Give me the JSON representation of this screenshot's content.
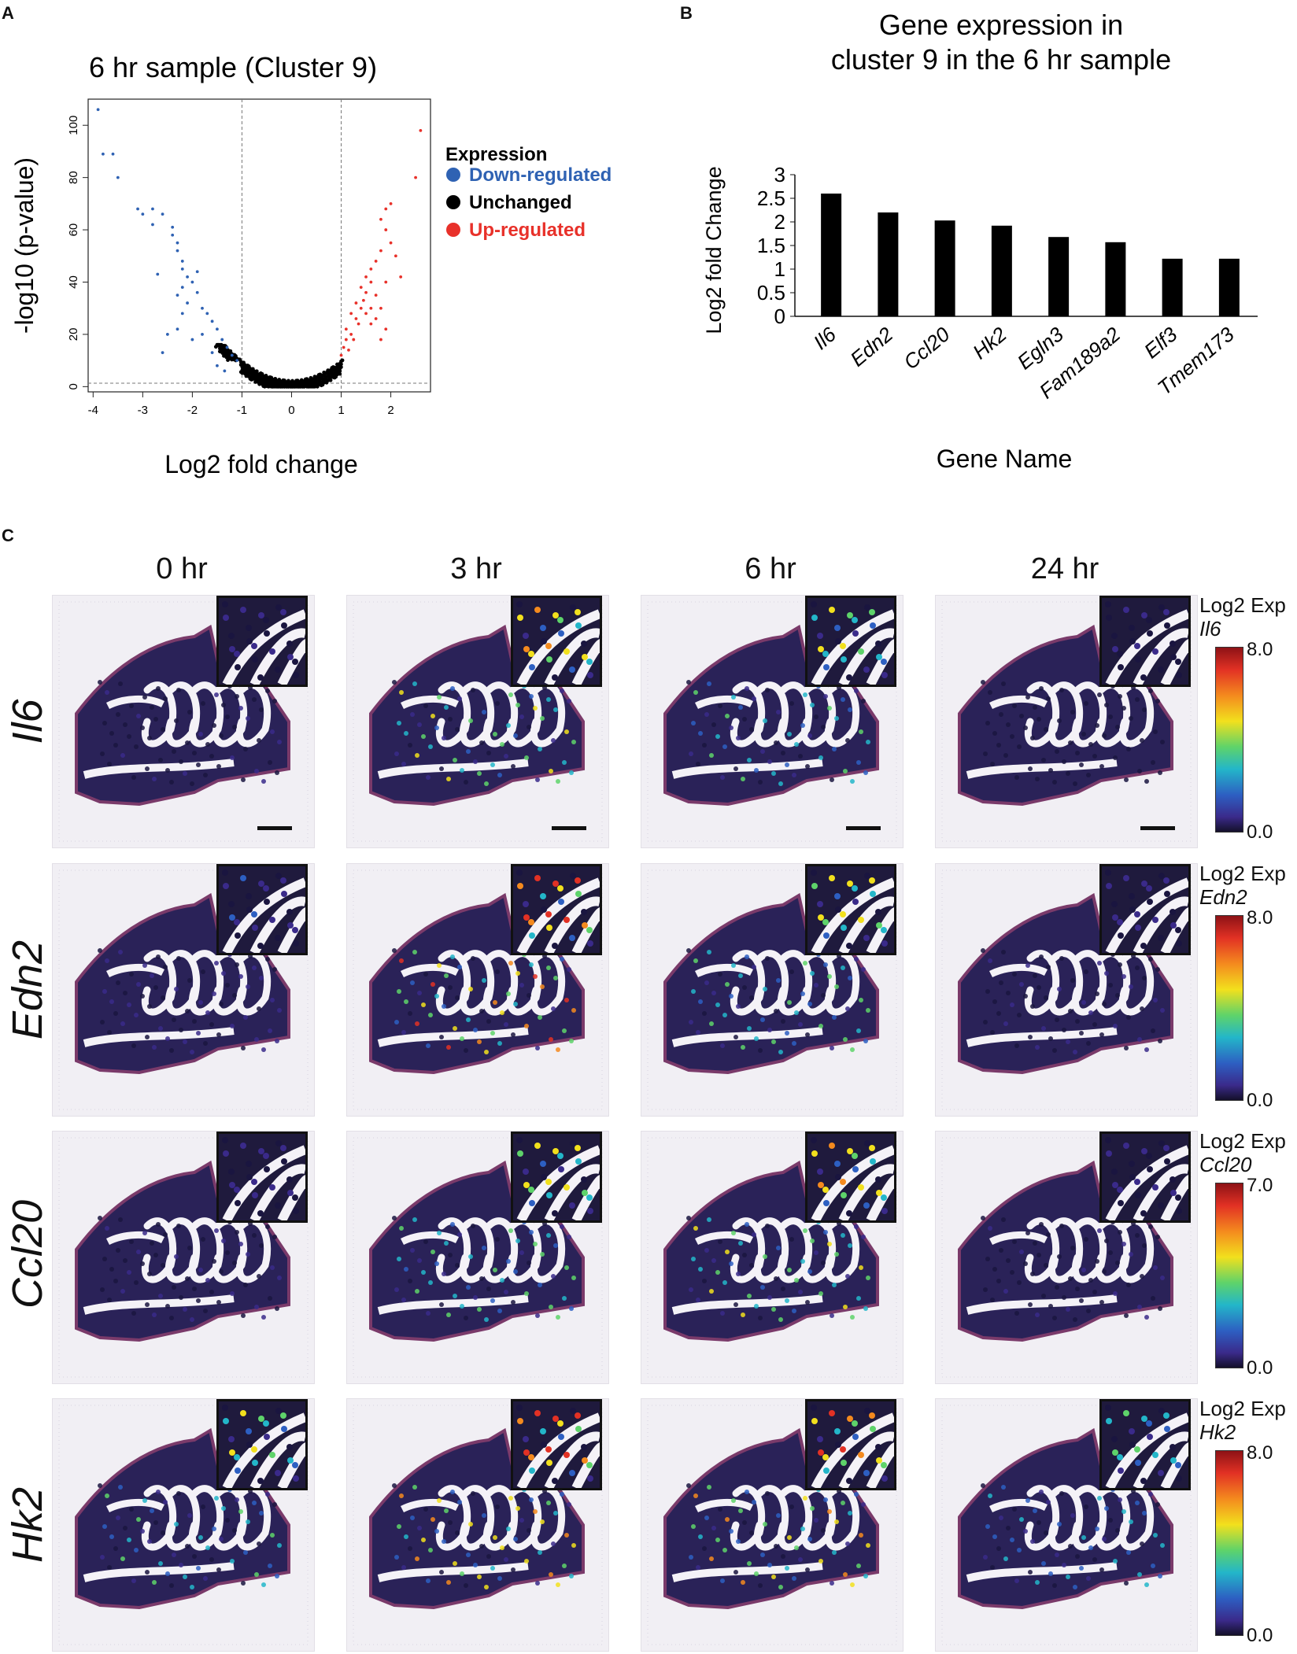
{
  "panels": {
    "a": "A",
    "b": "B",
    "c": "C"
  },
  "chart_data": [
    {
      "type": "scatter",
      "title": "6 hr sample (Cluster 9)",
      "xlabel": "Log2 fold change",
      "ylabel": "-log10 (p-value)",
      "xlim": [
        -4.1,
        2.8
      ],
      "ylim": [
        -2,
        110
      ],
      "xticks": [
        "-4",
        "-3",
        "-2",
        "-1",
        "0",
        "1",
        "2"
      ],
      "yticks": [
        "0",
        "20",
        "40",
        "60",
        "80",
        "100"
      ],
      "thresholds": {
        "x": [
          -1,
          1
        ],
        "y": 1.3
      },
      "legend": {
        "title": "Expression",
        "position": "right",
        "entries": [
          {
            "label": "Down-regulated",
            "color": "#2f62b3"
          },
          {
            "label": "Unchanged",
            "color": "#000000"
          },
          {
            "label": "Up-regulated",
            "color": "#e8312a"
          }
        ]
      },
      "series": [
        {
          "name": "Down-regulated",
          "color": "#2f62b3",
          "points": [
            [
              -3.9,
              106
            ],
            [
              -3.8,
              89
            ],
            [
              -3.6,
              89
            ],
            [
              -3.5,
              80
            ],
            [
              -3.1,
              68
            ],
            [
              -3.0,
              66
            ],
            [
              -2.8,
              68
            ],
            [
              -2.8,
              62
            ],
            [
              -2.6,
              66
            ],
            [
              -2.4,
              61
            ],
            [
              -2.4,
              58
            ],
            [
              -2.3,
              55
            ],
            [
              -2.3,
              52
            ],
            [
              -2.2,
              48
            ],
            [
              -2.2,
              45
            ],
            [
              -2.1,
              42
            ],
            [
              -2.2,
              38
            ],
            [
              -2.0,
              40
            ],
            [
              -1.9,
              36
            ],
            [
              -2.3,
              35
            ],
            [
              -2.1,
              32
            ],
            [
              -1.8,
              30
            ],
            [
              -1.7,
              28
            ],
            [
              -2.5,
              20
            ],
            [
              -2.3,
              22
            ],
            [
              -2.0,
              18
            ],
            [
              -1.6,
              25
            ],
            [
              -1.5,
              22
            ],
            [
              -1.4,
              18
            ],
            [
              -1.3,
              15
            ],
            [
              -1.2,
              12
            ],
            [
              -1.1,
              10
            ],
            [
              -1.5,
              8
            ],
            [
              -2.7,
              43
            ],
            [
              -2.6,
              13
            ],
            [
              -1.8,
              20
            ],
            [
              -1.35,
              6
            ],
            [
              -1.6,
              13
            ],
            [
              -2.2,
              28
            ],
            [
              -1.9,
              44
            ]
          ]
        },
        {
          "name": "Up-regulated",
          "color": "#e8312a",
          "points": [
            [
              2.6,
              98
            ],
            [
              2.5,
              80
            ],
            [
              2.0,
              70
            ],
            [
              1.9,
              68
            ],
            [
              1.8,
              64
            ],
            [
              1.9,
              60
            ],
            [
              2.0,
              55
            ],
            [
              1.8,
              52
            ],
            [
              1.7,
              48
            ],
            [
              1.6,
              45
            ],
            [
              1.5,
              42
            ],
            [
              1.6,
              40
            ],
            [
              1.4,
              38
            ],
            [
              1.5,
              36
            ],
            [
              1.7,
              35
            ],
            [
              1.3,
              32
            ],
            [
              1.4,
              30
            ],
            [
              1.2,
              28
            ],
            [
              1.3,
              26
            ],
            [
              1.6,
              24
            ],
            [
              1.1,
              22
            ],
            [
              1.2,
              20
            ],
            [
              1.1,
              18
            ],
            [
              1.05,
              15
            ],
            [
              1.0,
              12
            ],
            [
              1.8,
              30
            ],
            [
              1.9,
              22
            ],
            [
              2.1,
              50
            ],
            [
              1.5,
              28
            ],
            [
              1.7,
              26
            ],
            [
              1.35,
              24
            ],
            [
              1.45,
              33
            ],
            [
              1.25,
              18
            ],
            [
              1.15,
              14
            ],
            [
              1.6,
              30
            ],
            [
              1.9,
              40
            ],
            [
              2.2,
              42
            ],
            [
              1.8,
              18
            ]
          ]
        },
        {
          "name": "Unchanged",
          "color": "#000000",
          "curve": true
        }
      ]
    },
    {
      "type": "bar",
      "title_lines": [
        "Gene expression in",
        "cluster 9 in the 6 hr sample"
      ],
      "xlabel": "Gene Name",
      "ylabel": "Log2 fold Change",
      "ylim": [
        0,
        3
      ],
      "yticks": [
        "0",
        "0.5",
        "1",
        "1.5",
        "2",
        "2.5",
        "3"
      ],
      "categories": [
        "Il6",
        "Edn2",
        "Ccl20",
        "Hk2",
        "Egln3",
        "Fam189a2",
        "Elf3",
        "Tmem173"
      ],
      "values": [
        2.6,
        2.2,
        2.03,
        1.92,
        1.68,
        1.57,
        1.22,
        1.22
      ]
    }
  ],
  "heatmap_panel": {
    "timepoints": [
      "0 hr",
      "3 hr",
      "6 hr",
      "24 hr"
    ],
    "rows": [
      {
        "gene": "Il6",
        "cbar_title": "Log2 Exp",
        "max": "8.0",
        "min": "0.0"
      },
      {
        "gene": "Edn2",
        "cbar_title": "Log2 Exp",
        "max": "8.0",
        "min": "0.0"
      },
      {
        "gene": "Ccl20",
        "cbar_title": "Log2 Exp",
        "max": "7.0",
        "min": "0.0"
      },
      {
        "gene": "Hk2",
        "cbar_title": "Log2 Exp",
        "max": "8.0",
        "min": "0.0"
      }
    ],
    "intensity": [
      [
        0.1,
        0.45,
        0.35,
        0.08
      ],
      [
        0.15,
        0.6,
        0.4,
        0.12
      ],
      [
        0.12,
        0.4,
        0.45,
        0.1
      ],
      [
        0.35,
        0.55,
        0.5,
        0.3
      ]
    ]
  }
}
